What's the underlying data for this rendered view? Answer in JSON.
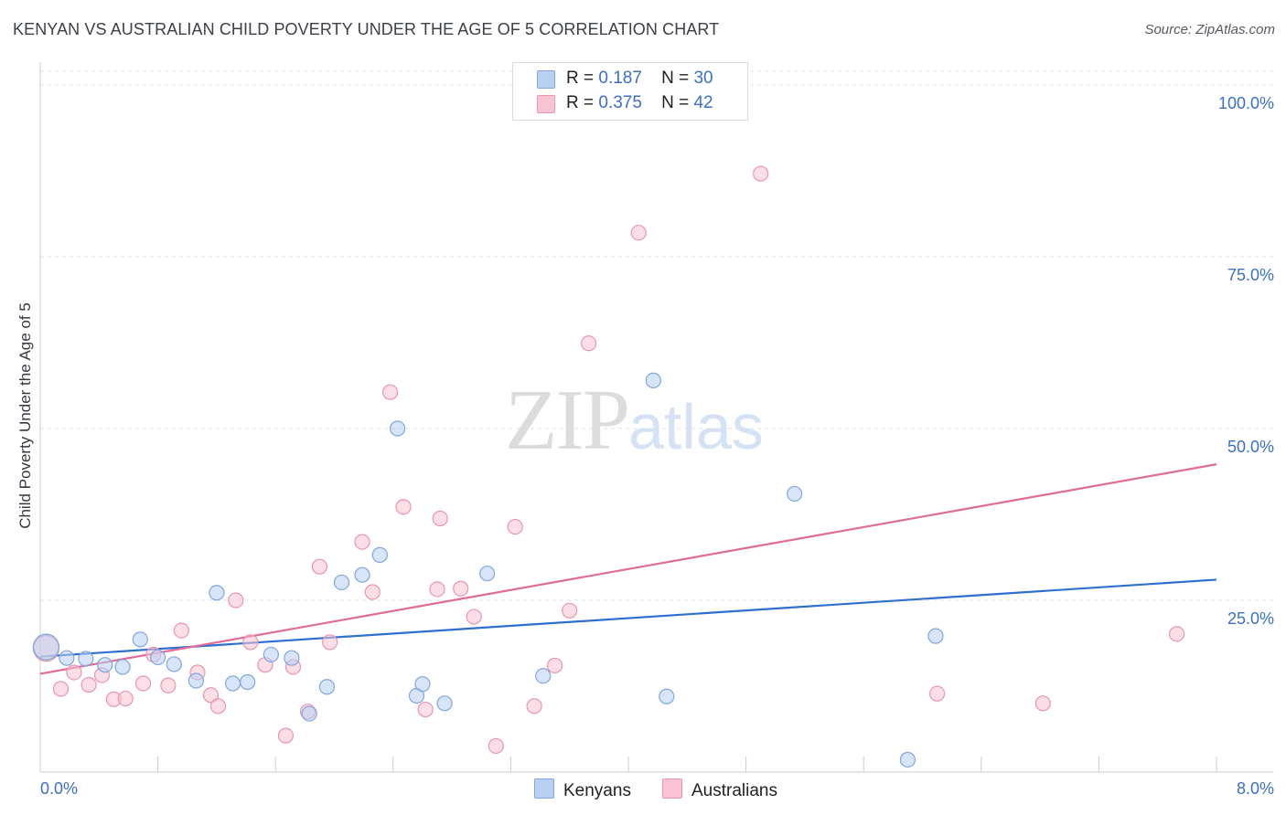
{
  "header": {
    "title": "KENYAN VS AUSTRALIAN CHILD POVERTY UNDER THE AGE OF 5 CORRELATION CHART",
    "source": "Source: ZipAtlas.com"
  },
  "watermark": {
    "zip": "ZIP",
    "atlas": "atlas"
  },
  "legend": {
    "rows": [
      {
        "r_label": "R =",
        "r_value": "0.187",
        "n_label": "N =",
        "n_value": "30"
      },
      {
        "r_label": "R =",
        "r_value": "0.375",
        "n_label": "N =",
        "n_value": "42"
      }
    ]
  },
  "bottom_legend": {
    "kenyans": "Kenyans",
    "australians": "Australians"
  },
  "colors": {
    "kenyans_fill": "#b8d0f2",
    "kenyans_stroke": "#7fa6df",
    "kenyans_line": "#2e6fd0",
    "australians_fill": "#f8c3d2",
    "australians_stroke": "#eb94ae",
    "australians_line": "#e06b96",
    "accent_text": "#3c6fc6",
    "grid": "#dfe2e6"
  },
  "chart_data": {
    "type": "scatter",
    "title": "KENYAN VS AUSTRALIAN CHILD POVERTY UNDER THE AGE OF 5 CORRELATION CHART",
    "xlabel": "",
    "ylabel": "Child Poverty Under the Age of 5",
    "xlim": [
      0,
      8
    ],
    "ylim": [
      0,
      102
    ],
    "x_tick_labels": [
      "0.0%",
      "8.0%"
    ],
    "y_ticks": [
      25,
      50,
      75,
      100
    ],
    "y_tick_labels": [
      "25.0%",
      "50.0%",
      "75.0%",
      "100.0%"
    ],
    "grid": true,
    "legend_position": "top-center",
    "series": [
      {
        "name": "Kenyans",
        "color": "#7fa6df",
        "points": [
          [
            0.04,
            18.2
          ],
          [
            0.18,
            16.6
          ],
          [
            0.31,
            16.5
          ],
          [
            0.44,
            15.6
          ],
          [
            0.56,
            15.3
          ],
          [
            0.68,
            19.3
          ],
          [
            0.8,
            16.7
          ],
          [
            0.91,
            15.7
          ],
          [
            1.06,
            13.3
          ],
          [
            1.2,
            26.1
          ],
          [
            1.31,
            12.9
          ],
          [
            1.41,
            13.1
          ],
          [
            1.57,
            17.1
          ],
          [
            1.71,
            16.6
          ],
          [
            1.83,
            8.5
          ],
          [
            1.95,
            12.4
          ],
          [
            2.05,
            27.6
          ],
          [
            2.19,
            28.7
          ],
          [
            2.31,
            31.6
          ],
          [
            2.43,
            50.0
          ],
          [
            2.56,
            11.1
          ],
          [
            2.6,
            12.8
          ],
          [
            2.75,
            10.0
          ],
          [
            3.04,
            28.9
          ],
          [
            3.42,
            14.0
          ],
          [
            4.17,
            57.0
          ],
          [
            4.26,
            11.0
          ],
          [
            5.13,
            40.5
          ],
          [
            6.09,
            19.8
          ],
          [
            5.9,
            1.8
          ]
        ],
        "trend": {
          "x": [
            0,
            8
          ],
          "y": [
            16.8,
            28.0
          ]
        }
      },
      {
        "name": "Australians",
        "color": "#eb94ae",
        "points": [
          [
            0.04,
            18.0
          ],
          [
            0.14,
            12.1
          ],
          [
            0.23,
            14.5
          ],
          [
            0.33,
            12.7
          ],
          [
            0.42,
            14.1
          ],
          [
            0.5,
            10.6
          ],
          [
            0.58,
            10.7
          ],
          [
            0.7,
            12.9
          ],
          [
            0.77,
            17.1
          ],
          [
            0.87,
            12.6
          ],
          [
            0.96,
            20.6
          ],
          [
            1.07,
            14.5
          ],
          [
            1.16,
            11.2
          ],
          [
            1.21,
            9.6
          ],
          [
            1.33,
            25.0
          ],
          [
            1.43,
            18.9
          ],
          [
            1.53,
            15.6
          ],
          [
            1.67,
            5.3
          ],
          [
            1.72,
            15.3
          ],
          [
            1.82,
            8.8
          ],
          [
            1.9,
            29.9
          ],
          [
            1.97,
            18.9
          ],
          [
            2.19,
            33.5
          ],
          [
            2.26,
            26.2
          ],
          [
            2.38,
            55.3
          ],
          [
            2.47,
            38.6
          ],
          [
            2.62,
            9.1
          ],
          [
            2.72,
            36.9
          ],
          [
            2.7,
            26.6
          ],
          [
            2.86,
            26.7
          ],
          [
            2.95,
            22.6
          ],
          [
            3.1,
            3.8
          ],
          [
            3.23,
            35.7
          ],
          [
            3.36,
            9.6
          ],
          [
            3.5,
            15.5
          ],
          [
            3.6,
            23.5
          ],
          [
            3.73,
            62.4
          ],
          [
            4.07,
            78.5
          ],
          [
            4.9,
            87.1
          ],
          [
            6.1,
            11.4
          ],
          [
            6.82,
            10.0
          ],
          [
            7.73,
            20.1
          ]
        ],
        "trend": {
          "x": [
            0,
            8
          ],
          "y": [
            14.3,
            44.8
          ]
        }
      }
    ]
  }
}
